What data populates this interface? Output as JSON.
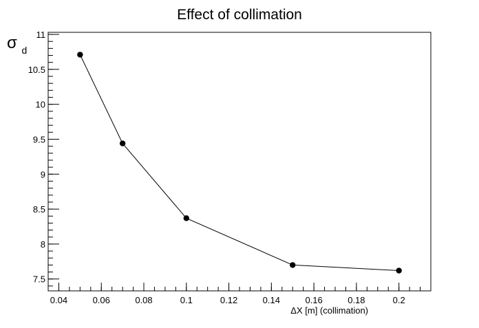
{
  "chart_data": {
    "type": "line",
    "title": "Effect of collimation",
    "xlabel": "ΔX [m] (collimation)",
    "ylabel": "σ",
    "ylabel_subscript": "d",
    "xlim": [
      0.035,
      0.215
    ],
    "ylim": [
      7.33,
      11.03
    ],
    "x_ticks": [
      0.04,
      0.06,
      0.08,
      0.1,
      0.12,
      0.14,
      0.16,
      0.18,
      0.2
    ],
    "x_tick_labels": [
      "0.04",
      "0.06",
      "0.08",
      "0.1",
      "0.12",
      "0.14",
      "0.16",
      "0.18",
      "0.2"
    ],
    "y_ticks": [
      7.5,
      8,
      8.5,
      9,
      9.5,
      10,
      10.5,
      11
    ],
    "y_tick_labels": [
      "7.5",
      "8",
      "8.5",
      "9",
      "9.5",
      "10",
      "10.5",
      "11"
    ],
    "grid": false,
    "legend": false,
    "series": [
      {
        "x": [
          0.05,
          0.07,
          0.1,
          0.15,
          0.2
        ],
        "y": [
          10.71,
          9.44,
          8.37,
          7.7,
          7.62
        ]
      }
    ],
    "colors": {
      "line": "#000000",
      "marker": "#000000",
      "frame": "#000000"
    }
  }
}
